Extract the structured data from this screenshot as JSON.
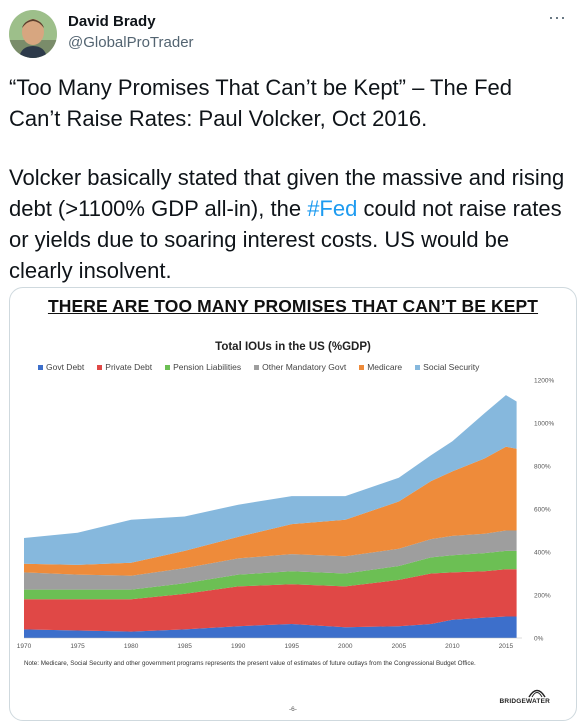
{
  "author": {
    "name": "David Brady",
    "handle": "@GlobalProTrader",
    "more_label": "···"
  },
  "tweet": {
    "line1": "“Too Many Promises That Can’t be Kept” – The Fed Can’t Raise Rates: Paul Volcker, Oct 2016.",
    "line2_before": "Volcker basically stated that given the massive and rising debt (>1100% GDP all-in), the ",
    "hashtag": "#Fed",
    "line2_after": " could not raise rates or yields due to soaring interest costs. US would be clearly insolvent."
  },
  "media": {
    "slide_title": "THERE ARE TOO MANY PROMISES THAT CAN’T BE KEPT",
    "note": "Note: Medicare, Social Security and other government programs represents the present value of estimates of future outlays from the Congressional Budget Office.",
    "page_number": "-6-",
    "brand": "BRIDGEWATER"
  },
  "colors": {
    "link": "#1d9bf0",
    "govt_debt": "#3d6fcb",
    "private_debt": "#e04846",
    "pension": "#6cbf54",
    "other_govt": "#9e9e9e",
    "medicare": "#ee8b3a",
    "social_security": "#86b8dd"
  },
  "chart_data": {
    "type": "area",
    "title": "Total IOUs in the US (%GDP)",
    "stacked": true,
    "x": [
      1970,
      1975,
      1980,
      1985,
      1990,
      1995,
      2000,
      2005,
      2008,
      2010,
      2013,
      2015,
      2016
    ],
    "xticks": [
      "1970",
      "1975",
      "1980",
      "1985",
      "1990",
      "1995",
      "2000",
      "2005",
      "2010",
      "2015"
    ],
    "ylim": [
      0,
      1200
    ],
    "yticks": [
      "0%",
      "200%",
      "400%",
      "600%",
      "800%",
      "1000%",
      "1200%"
    ],
    "legend_placement": "top",
    "series": [
      {
        "name": "Govt Debt",
        "color": "#3d6fcb",
        "values": [
          40,
          35,
          30,
          40,
          55,
          65,
          50,
          55,
          65,
          85,
          95,
          100,
          100
        ]
      },
      {
        "name": "Private Debt",
        "color": "#e04846",
        "values": [
          140,
          145,
          150,
          165,
          185,
          185,
          190,
          215,
          235,
          220,
          215,
          220,
          220
        ]
      },
      {
        "name": "Pension Liabilities",
        "color": "#6cbf54",
        "values": [
          45,
          45,
          45,
          50,
          55,
          60,
          60,
          65,
          75,
          80,
          85,
          85,
          85
        ]
      },
      {
        "name": "Other Mandatory Govt",
        "color": "#9e9e9e",
        "values": [
          80,
          70,
          65,
          70,
          75,
          80,
          80,
          80,
          85,
          90,
          90,
          95,
          95
        ]
      },
      {
        "name": "Medicare",
        "color": "#ee8b3a",
        "values": [
          40,
          45,
          60,
          80,
          100,
          140,
          170,
          220,
          270,
          300,
          350,
          390,
          380
        ]
      },
      {
        "name": "Social Security",
        "color": "#86b8dd",
        "values": [
          120,
          150,
          200,
          160,
          150,
          130,
          110,
          110,
          120,
          140,
          210,
          240,
          220
        ]
      }
    ]
  }
}
